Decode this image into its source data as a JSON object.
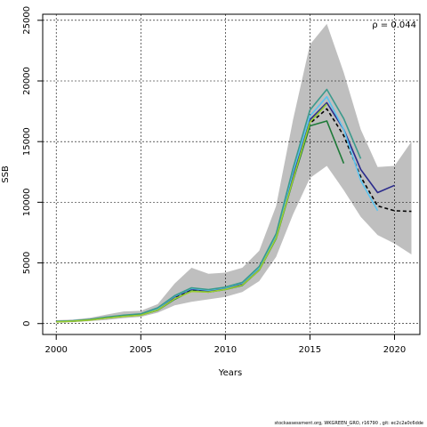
{
  "chart_data": {
    "type": "line",
    "xlabel": "Years",
    "ylabel": "SSB",
    "xlim": [
      1999.2,
      2021.5
    ],
    "ylim": [
      -900,
      25500
    ],
    "xticks": [
      2000,
      2005,
      2010,
      2015,
      2020
    ],
    "yticks": [
      0,
      5000,
      10000,
      15000,
      20000,
      25000
    ],
    "grid": true,
    "annotation": "ρ = 0.044",
    "band": {
      "x": [
        2000,
        2001,
        2002,
        2003,
        2004,
        2005,
        2006,
        2007,
        2008,
        2009,
        2010,
        2011,
        2012,
        2013,
        2014,
        2015,
        2016,
        2017,
        2018,
        2019,
        2020,
        2021
      ],
      "upper": [
        280,
        330,
        480,
        750,
        1000,
        1050,
        1600,
        3300,
        4600,
        4100,
        4200,
        4600,
        6000,
        9700,
        16800,
        23000,
        24700,
        20700,
        16000,
        12900,
        13000,
        15000
      ],
      "lower": [
        80,
        110,
        200,
        300,
        450,
        550,
        900,
        1500,
        1800,
        2000,
        2200,
        2600,
        3500,
        5500,
        9000,
        12000,
        13000,
        11000,
        8800,
        7300,
        6600,
        5700
      ]
    },
    "series": [
      {
        "x": [
          2000,
          2001,
          2002,
          2003,
          2004,
          2005,
          2006,
          2007,
          2008,
          2009,
          2010,
          2011,
          2012,
          2013,
          2014,
          2015,
          2016,
          2017,
          2018,
          2019,
          2020,
          2021
        ],
        "values": [
          150,
          200,
          300,
          480,
          620,
          720,
          1150,
          2100,
          2750,
          2650,
          2850,
          3200,
          4450,
          7100,
          12100,
          16500,
          17700,
          15500,
          12100,
          9700,
          9300,
          9250
        ],
        "color": "#000000",
        "dash": true,
        "width": 1.6
      },
      {
        "x": [
          2000,
          2001,
          2002,
          2003,
          2004,
          2005,
          2006,
          2007,
          2008,
          2009,
          2010,
          2011,
          2012,
          2013,
          2014,
          2015,
          2016,
          2017,
          2018,
          2019,
          2020
        ],
        "values": [
          160,
          210,
          310,
          500,
          640,
          750,
          1200,
          2200,
          2850,
          2700,
          2900,
          3300,
          4550,
          7200,
          12300,
          16800,
          18200,
          16000,
          12700,
          10800,
          11400
        ],
        "color": "#2b2b8c",
        "dash": false,
        "width": 1.6
      },
      {
        "x": [
          2000,
          2001,
          2002,
          2003,
          2004,
          2005,
          2006,
          2007,
          2008,
          2009,
          2010,
          2011,
          2012,
          2013,
          2014,
          2015,
          2016,
          2017,
          2018,
          2019
        ],
        "values": [
          170,
          220,
          320,
          520,
          660,
          780,
          1250,
          2250,
          2900,
          2750,
          2950,
          3350,
          4600,
          7300,
          12500,
          17100,
          18700,
          16000,
          11800,
          9300
        ],
        "color": "#5bc4f0",
        "dash": false,
        "width": 1.6
      },
      {
        "x": [
          2000,
          2001,
          2002,
          2003,
          2004,
          2005,
          2006,
          2007,
          2008,
          2009,
          2010,
          2011,
          2012,
          2013,
          2014,
          2015,
          2016,
          2017,
          2018
        ],
        "values": [
          180,
          230,
          340,
          540,
          690,
          800,
          1300,
          2300,
          2950,
          2800,
          3000,
          3400,
          4700,
          7400,
          12800,
          17600,
          19300,
          16900,
          13600
        ],
        "color": "#3a9a8c",
        "dash": false,
        "width": 1.6
      },
      {
        "x": [
          2000,
          2001,
          2002,
          2003,
          2004,
          2005,
          2006,
          2007,
          2008,
          2009,
          2010,
          2011,
          2012,
          2013,
          2014,
          2015,
          2016,
          2017
        ],
        "values": [
          150,
          200,
          300,
          470,
          600,
          700,
          1100,
          2000,
          2700,
          2600,
          2800,
          3150,
          4400,
          7000,
          11800,
          16300,
          16700,
          13200
        ],
        "color": "#1e7a38",
        "dash": false,
        "width": 1.6
      },
      {
        "x": [
          2000,
          2001,
          2002,
          2003,
          2004,
          2005,
          2006,
          2007,
          2008,
          2009,
          2010,
          2011,
          2012,
          2013,
          2014,
          2015,
          2016
        ],
        "values": [
          140,
          190,
          290,
          460,
          590,
          690,
          1120,
          2050,
          2650,
          2600,
          2820,
          3180,
          4420,
          7050,
          11900,
          16600,
          18100
        ],
        "color": "#9acd32",
        "dash": false,
        "width": 1.6
      }
    ]
  },
  "footer_text": "stockassessment.org, WKGREEN_GRO, r16790 , git: ec2c2a0c6dde"
}
